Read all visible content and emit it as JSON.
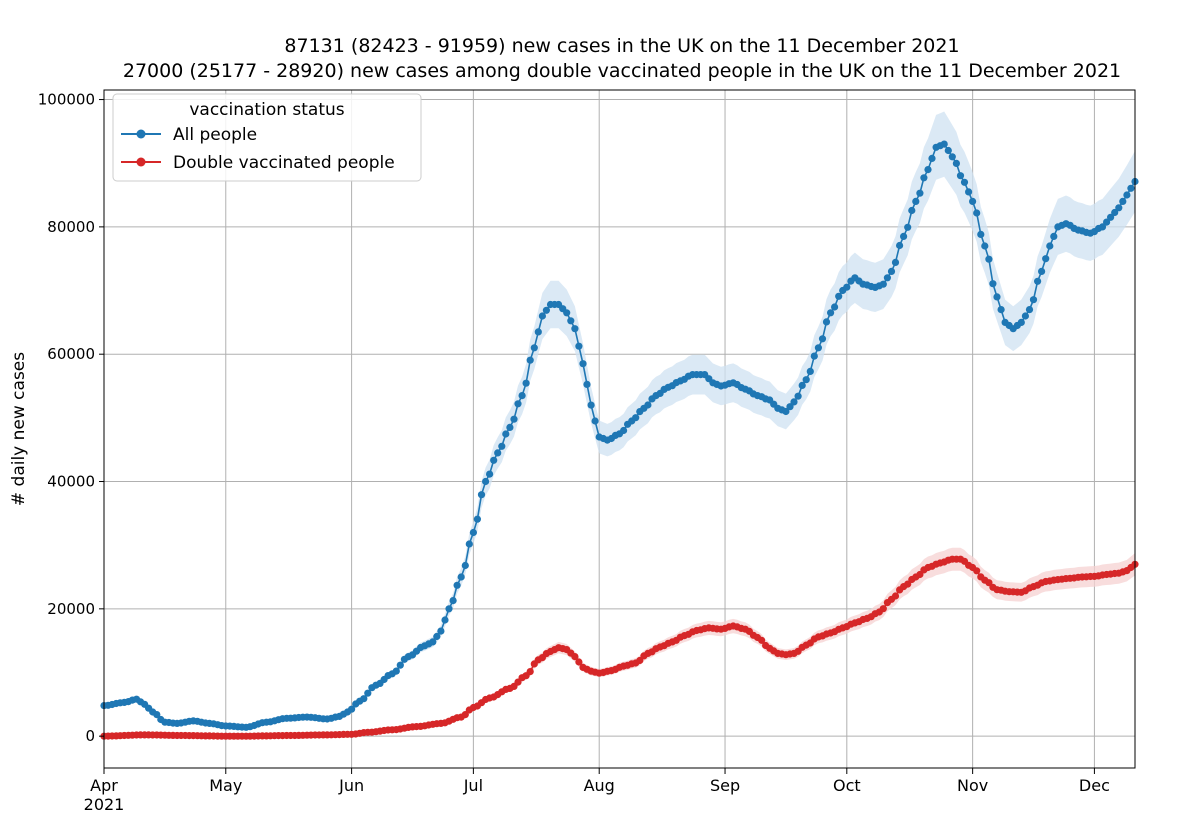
{
  "chart_data": {
    "type": "line",
    "title_line1": "87131 (82423 - 91959) new cases in the UK on the 11 December 2021",
    "title_line2": "27000 (25177 - 28920) new cases among double vaccinated people in the UK on the 11 December 2021",
    "ylabel": "# daily new cases",
    "xlabel": "",
    "ylim": [
      -5000,
      101500
    ],
    "xlim_days": [
      0,
      254
    ],
    "grid": true,
    "yticks": [
      0,
      20000,
      40000,
      60000,
      80000,
      100000
    ],
    "ytick_labels": [
      "0",
      "20000",
      "40000",
      "60000",
      "80000",
      "100000"
    ],
    "xticks": [
      {
        "day": 0,
        "label": "Apr"
      },
      {
        "day": 30,
        "label": "May"
      },
      {
        "day": 61,
        "label": "Jun"
      },
      {
        "day": 91,
        "label": "Jul"
      },
      {
        "day": 122,
        "label": "Aug"
      },
      {
        "day": 153,
        "label": "Sep"
      },
      {
        "day": 183,
        "label": "Oct"
      },
      {
        "day": 214,
        "label": "Nov"
      },
      {
        "day": 244,
        "label": "Dec"
      }
    ],
    "x_year_label": "2021",
    "legend": {
      "title": "vaccination status",
      "placement": "top-left"
    },
    "series": [
      {
        "name": "All people",
        "color": "#1f77b4",
        "band_color": "#cfe1f2",
        "band_pct": 0.055,
        "anchors": [
          [
            0,
            4800
          ],
          [
            5,
            5300
          ],
          [
            8,
            5800
          ],
          [
            10,
            5000
          ],
          [
            12,
            3800
          ],
          [
            15,
            2200
          ],
          [
            18,
            2000
          ],
          [
            22,
            2400
          ],
          [
            26,
            2000
          ],
          [
            30,
            1600
          ],
          [
            35,
            1400
          ],
          [
            40,
            2200
          ],
          [
            45,
            2800
          ],
          [
            50,
            3000
          ],
          [
            55,
            2700
          ],
          [
            58,
            3100
          ],
          [
            60,
            3800
          ],
          [
            63,
            5500
          ],
          [
            67,
            8000
          ],
          [
            71,
            9800
          ],
          [
            75,
            12500
          ],
          [
            79,
            14200
          ],
          [
            81,
            14800
          ],
          [
            83,
            16500
          ],
          [
            85,
            20000
          ],
          [
            88,
            25000
          ],
          [
            91,
            32000
          ],
          [
            94,
            40000
          ],
          [
            97,
            44500
          ],
          [
            100,
            48500
          ],
          [
            103,
            53500
          ],
          [
            106,
            61000
          ],
          [
            108,
            66000
          ],
          [
            110,
            67800
          ],
          [
            112,
            67800
          ],
          [
            114,
            66500
          ],
          [
            116,
            64000
          ],
          [
            118,
            58500
          ],
          [
            120,
            52000
          ],
          [
            122,
            47000
          ],
          [
            124,
            46500
          ],
          [
            127,
            47500
          ],
          [
            130,
            49500
          ],
          [
            133,
            51500
          ],
          [
            136,
            53500
          ],
          [
            139,
            54800
          ],
          [
            142,
            55800
          ],
          [
            145,
            56800
          ],
          [
            148,
            56800
          ],
          [
            150,
            55500
          ],
          [
            152,
            55000
          ],
          [
            155,
            55500
          ],
          [
            158,
            54500
          ],
          [
            161,
            53500
          ],
          [
            164,
            52800
          ],
          [
            166,
            51500
          ],
          [
            168,
            51000
          ],
          [
            170,
            52500
          ],
          [
            173,
            56000
          ],
          [
            176,
            61000
          ],
          [
            179,
            66500
          ],
          [
            182,
            70000
          ],
          [
            185,
            72000
          ],
          [
            187,
            71000
          ],
          [
            190,
            70500
          ],
          [
            192,
            71000
          ],
          [
            194,
            73000
          ],
          [
            197,
            78500
          ],
          [
            200,
            84000
          ],
          [
            203,
            89000
          ],
          [
            205,
            92500
          ],
          [
            207,
            93000
          ],
          [
            209,
            91000
          ],
          [
            212,
            87000
          ],
          [
            214,
            84000
          ],
          [
            217,
            77000
          ],
          [
            220,
            69000
          ],
          [
            222,
            65000
          ],
          [
            224,
            64000
          ],
          [
            226,
            65000
          ],
          [
            228,
            67000
          ],
          [
            231,
            73000
          ],
          [
            233,
            77000
          ],
          [
            235,
            80000
          ],
          [
            237,
            80500
          ],
          [
            240,
            79500
          ],
          [
            243,
            79000
          ],
          [
            246,
            80000
          ],
          [
            248,
            81500
          ],
          [
            250,
            83000
          ],
          [
            252,
            85000
          ],
          [
            254,
            87131
          ]
        ]
      },
      {
        "name": "Double vaccinated people",
        "color": "#d62728",
        "band_color": "#f6d2d2",
        "band_pct": 0.065,
        "anchors": [
          [
            0,
            0
          ],
          [
            10,
            200
          ],
          [
            20,
            100
          ],
          [
            30,
            0
          ],
          [
            35,
            0
          ],
          [
            45,
            100
          ],
          [
            55,
            200
          ],
          [
            61,
            300
          ],
          [
            65,
            600
          ],
          [
            71,
            1000
          ],
          [
            77,
            1500
          ],
          [
            83,
            2000
          ],
          [
            88,
            3000
          ],
          [
            91,
            4500
          ],
          [
            95,
            6000
          ],
          [
            100,
            7500
          ],
          [
            104,
            9500
          ],
          [
            107,
            12000
          ],
          [
            110,
            13300
          ],
          [
            112,
            13900
          ],
          [
            114,
            13600
          ],
          [
            116,
            12500
          ],
          [
            118,
            10800
          ],
          [
            120,
            10200
          ],
          [
            122,
            9900
          ],
          [
            125,
            10300
          ],
          [
            128,
            11000
          ],
          [
            131,
            11500
          ],
          [
            134,
            13000
          ],
          [
            137,
            14000
          ],
          [
            140,
            14800
          ],
          [
            143,
            15800
          ],
          [
            146,
            16600
          ],
          [
            149,
            17000
          ],
          [
            152,
            16800
          ],
          [
            155,
            17300
          ],
          [
            158,
            16800
          ],
          [
            161,
            15500
          ],
          [
            164,
            13800
          ],
          [
            166,
            13000
          ],
          [
            168,
            12800
          ],
          [
            170,
            13000
          ],
          [
            173,
            14300
          ],
          [
            176,
            15600
          ],
          [
            179,
            16200
          ],
          [
            182,
            17000
          ],
          [
            185,
            17800
          ],
          [
            188,
            18500
          ],
          [
            191,
            19500
          ],
          [
            194,
            21500
          ],
          [
            197,
            23500
          ],
          [
            200,
            25000
          ],
          [
            203,
            26500
          ],
          [
            206,
            27200
          ],
          [
            209,
            27800
          ],
          [
            211,
            27800
          ],
          [
            214,
            26500
          ],
          [
            217,
            24500
          ],
          [
            220,
            23000
          ],
          [
            223,
            22700
          ],
          [
            226,
            22600
          ],
          [
            229,
            23500
          ],
          [
            232,
            24300
          ],
          [
            235,
            24600
          ],
          [
            238,
            24800
          ],
          [
            241,
            25000
          ],
          [
            244,
            25100
          ],
          [
            247,
            25400
          ],
          [
            250,
            25600
          ],
          [
            252,
            26000
          ],
          [
            254,
            27000
          ]
        ]
      }
    ]
  }
}
